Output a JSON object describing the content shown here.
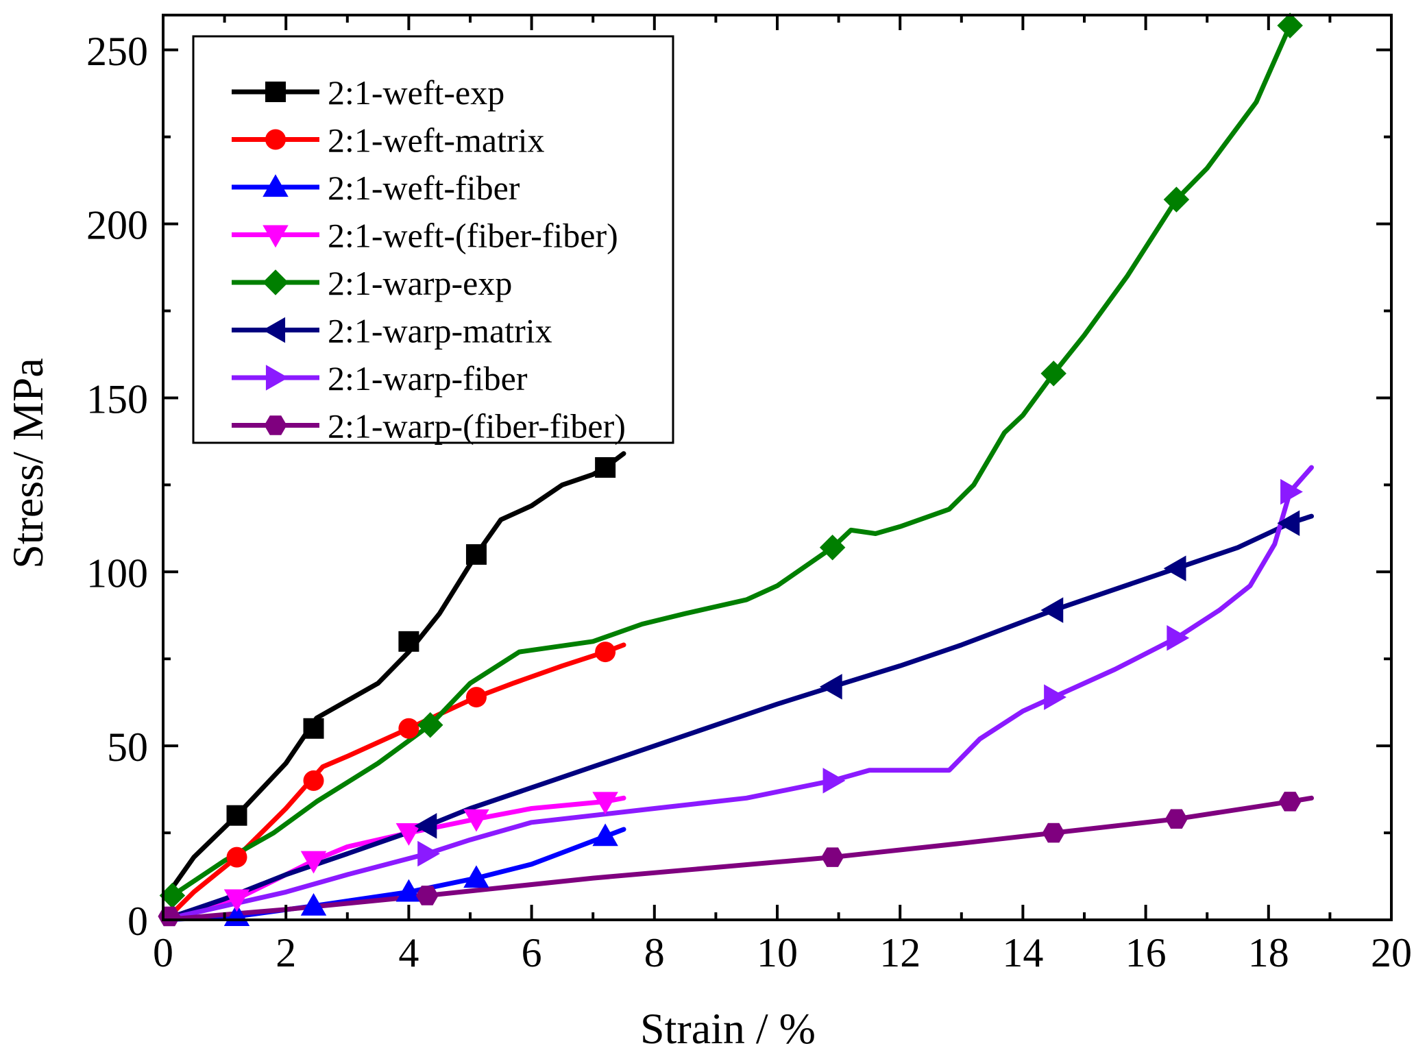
{
  "chart_data": {
    "type": "line",
    "title": "",
    "xlabel": "Strain / %",
    "ylabel": "Stress/ MPa",
    "xlim": [
      0,
      20
    ],
    "ylim": [
      0,
      260
    ],
    "xticks": [
      0,
      2,
      4,
      6,
      8,
      10,
      12,
      14,
      16,
      18,
      20
    ],
    "yticks": [
      0,
      50,
      100,
      150,
      200,
      250
    ],
    "xtick_labels": [
      "0",
      "2",
      "4",
      "6",
      "8",
      "10",
      "12",
      "14",
      "16",
      "18",
      "20"
    ],
    "ytick_labels": [
      "0",
      "50",
      "100",
      "150",
      "200",
      "250"
    ],
    "grid": false,
    "legend_position": "top-left",
    "series": [
      {
        "name": "2:1-weft-exp",
        "color": "#000000",
        "marker": "square",
        "x": [
          0.1,
          0.5,
          1.2,
          2.0,
          2.5,
          3.0,
          3.5,
          4.0,
          4.5,
          5.1,
          5.5,
          6.0,
          6.5,
          7.0,
          7.2,
          7.5
        ],
        "y": [
          8,
          18,
          30,
          45,
          58,
          63,
          68,
          77,
          88,
          105,
          115,
          119,
          125,
          128,
          130,
          134
        ],
        "markers_x": [
          1.2,
          2.45,
          4.0,
          5.1,
          7.2
        ],
        "markers_y": [
          30,
          55,
          80,
          105,
          130
        ]
      },
      {
        "name": "2:1-weft-matrix",
        "color": "#ff0000",
        "marker": "circle",
        "x": [
          0.1,
          0.5,
          1.2,
          2.0,
          2.4,
          2.6,
          3.0,
          4.0,
          5.1,
          5.7,
          6.5,
          7.2,
          7.5
        ],
        "y": [
          1,
          8,
          18,
          32,
          40,
          44,
          47,
          55,
          64,
          68,
          73,
          77,
          79
        ],
        "markers_x": [
          1.2,
          2.45,
          4.0,
          5.1,
          7.2
        ],
        "markers_y": [
          18,
          40,
          55,
          64,
          77
        ]
      },
      {
        "name": "2:1-weft-fiber",
        "color": "#0000ff",
        "marker": "triangle-up",
        "x": [
          0.0,
          1.2,
          2.45,
          4.0,
          5.1,
          6.0,
          6.6,
          7.2,
          7.5
        ],
        "y": [
          0,
          1,
          4,
          8,
          12,
          16,
          20,
          24,
          26
        ],
        "markers_x": [
          1.2,
          2.45,
          4.0,
          5.1,
          7.2
        ],
        "markers_y": [
          1,
          4,
          8,
          12,
          24
        ]
      },
      {
        "name": "2:1-weft-(fiber-fiber)",
        "color": "#ff00ff",
        "marker": "triangle-down",
        "x": [
          0.0,
          1.2,
          2.0,
          2.45,
          3.0,
          4.0,
          5.1,
          6.0,
          7.2,
          7.5
        ],
        "y": [
          0,
          6,
          13,
          17,
          21,
          25,
          29,
          32,
          34,
          35
        ],
        "markers_x": [
          1.2,
          2.45,
          4.0,
          5.1,
          7.2
        ],
        "markers_y": [
          6,
          17,
          25,
          29,
          34
        ]
      },
      {
        "name": "2:1-warp-exp",
        "color": "#007f00",
        "marker": "diamond",
        "x": [
          0.15,
          1.0,
          1.8,
          2.5,
          3.5,
          4.35,
          5.0,
          5.8,
          7.0,
          7.8,
          8.5,
          9.5,
          10.0,
          10.9,
          11.2,
          11.6,
          12.0,
          12.8,
          13.2,
          13.7,
          14.0,
          14.5,
          15.0,
          15.7,
          16.5,
          17.0,
          17.8,
          18.35
        ],
        "y": [
          7,
          17,
          25,
          34,
          45,
          56,
          68,
          77,
          80,
          85,
          88,
          92,
          96,
          107,
          112,
          111,
          113,
          118,
          125,
          140,
          145,
          157,
          168,
          185,
          207,
          216,
          235,
          257
        ],
        "markers_x": [
          0.15,
          4.35,
          10.9,
          14.5,
          16.5,
          18.35
        ],
        "markers_y": [
          7,
          56,
          107,
          157,
          207,
          257
        ]
      },
      {
        "name": "2:1-warp-matrix",
        "color": "#00007f",
        "marker": "triangle-left",
        "x": [
          0.0,
          1.0,
          2.0,
          3.0,
          4.3,
          5.0,
          6.0,
          7.0,
          8.0,
          9.0,
          10.0,
          10.9,
          12.0,
          13.0,
          14.5,
          16.5,
          17.5,
          18.35,
          18.7
        ],
        "y": [
          0,
          6,
          13,
          19,
          27,
          32,
          38,
          44,
          50,
          56,
          62,
          67,
          73,
          79,
          89,
          101,
          107,
          114,
          116
        ],
        "markers_x": [
          4.3,
          10.9,
          14.5,
          16.5,
          18.35
        ],
        "markers_y": [
          27,
          67,
          89,
          101,
          114
        ]
      },
      {
        "name": "2:1-warp-fiber",
        "color": "#8b1aff",
        "marker": "triangle-right",
        "x": [
          0.0,
          1.0,
          2.0,
          3.0,
          4.3,
          5.0,
          6.0,
          7.0,
          8.0,
          9.5,
          10.9,
          11.5,
          12.0,
          12.8,
          13.3,
          14.0,
          14.5,
          15.5,
          16.5,
          17.2,
          17.7,
          18.1,
          18.35,
          18.7
        ],
        "y": [
          0,
          4,
          8,
          13,
          19,
          23,
          28,
          30,
          32,
          35,
          40,
          43,
          43,
          43,
          52,
          60,
          64,
          72,
          81,
          89,
          96,
          108,
          123,
          130
        ],
        "markers_x": [
          4.3,
          10.9,
          14.5,
          16.5,
          18.35
        ],
        "markers_y": [
          19,
          40,
          64,
          81,
          123
        ]
      },
      {
        "name": "2:1-warp-(fiber-fiber)",
        "color": "#7f007f",
        "marker": "hexagon",
        "x": [
          0.0,
          2.0,
          4.3,
          7.0,
          10.9,
          13.0,
          14.5,
          16.5,
          18.35,
          18.7
        ],
        "y": [
          0,
          3,
          7,
          12,
          18,
          22,
          25,
          29,
          34,
          35
        ],
        "markers_x": [
          0.1,
          4.3,
          10.9,
          14.5,
          16.5,
          18.35
        ],
        "markers_y": [
          1,
          7,
          18,
          25,
          29,
          34
        ]
      }
    ]
  }
}
